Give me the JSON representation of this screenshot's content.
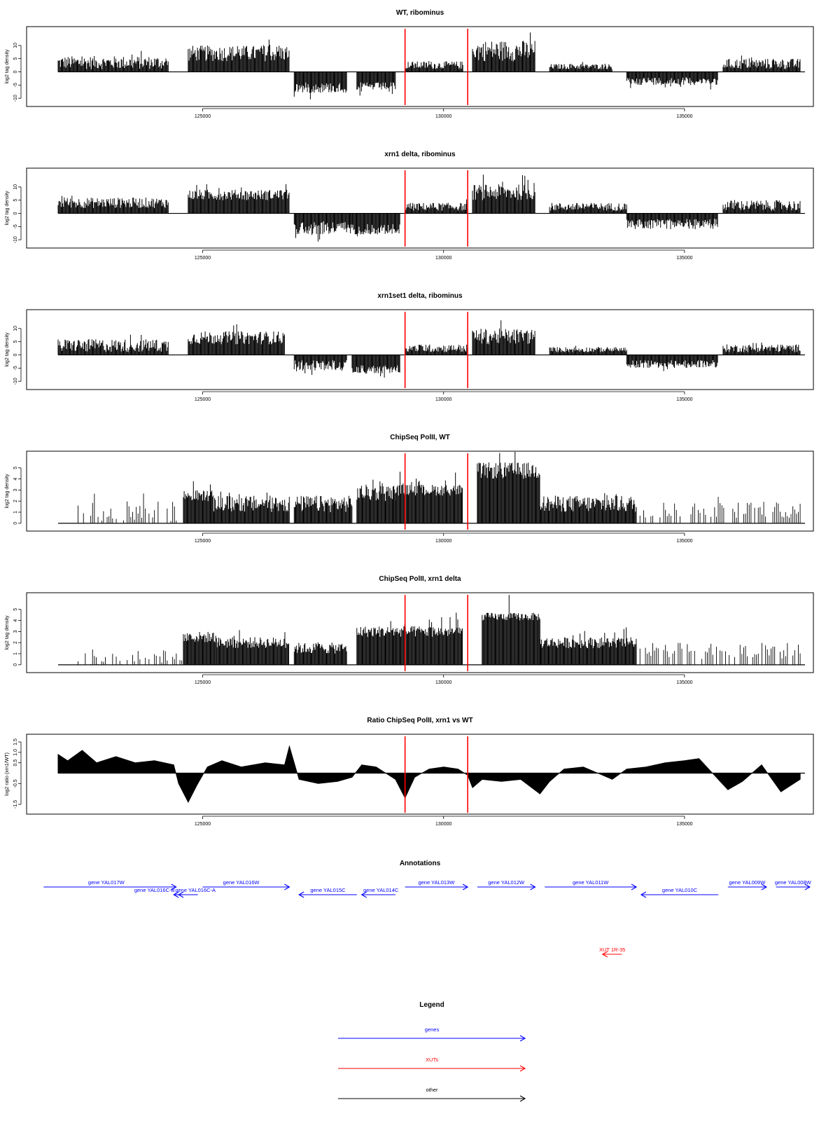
{
  "chart_data": [
    {
      "type": "bar",
      "title": "WT, ribominus",
      "ylabel": "log2 tag density",
      "ylim": [
        -11,
        15
      ],
      "yticks": [
        "-10",
        "-5",
        "0",
        "5",
        "10"
      ],
      "xlim": [
        122000,
        137500
      ],
      "xticks": [
        "125000",
        "130000",
        "135000"
      ],
      "markers": [
        129200,
        130500
      ],
      "segments": [
        {
          "x": [
            122000,
            124300
          ],
          "y": [
            1,
            6
          ],
          "dir": "pos"
        },
        {
          "x": [
            124700,
            126800
          ],
          "y": [
            4,
            10
          ],
          "dir": "pos"
        },
        {
          "x": [
            126900,
            128000
          ],
          "y": [
            -4,
            -8
          ],
          "dir": "neg"
        },
        {
          "x": [
            128200,
            129000
          ],
          "y": [
            -4,
            -7
          ],
          "dir": "neg"
        },
        {
          "x": [
            129200,
            130400
          ],
          "y": [
            1,
            4
          ],
          "dir": "pos"
        },
        {
          "x": [
            130600,
            131900
          ],
          "y": [
            4,
            12
          ],
          "dir": "pos"
        },
        {
          "x": [
            132200,
            133500
          ],
          "y": [
            1,
            3
          ],
          "dir": "pos"
        },
        {
          "x": [
            133800,
            135700
          ],
          "y": [
            -2,
            -5
          ],
          "dir": "neg"
        },
        {
          "x": [
            135800,
            137400
          ],
          "y": [
            1,
            5
          ],
          "dir": "pos"
        }
      ]
    },
    {
      "type": "bar",
      "title": "xrn1 delta, ribominus",
      "ylabel": "log2 tag density",
      "ylim": [
        -11,
        15
      ],
      "yticks": [
        "-10",
        "-5",
        "0",
        "5",
        "10"
      ],
      "xlim": [
        122000,
        137500
      ],
      "xticks": [
        "125000",
        "130000",
        "135000"
      ],
      "markers": [
        129200,
        130500
      ],
      "segments": [
        {
          "x": [
            122000,
            124300
          ],
          "y": [
            2,
            6
          ],
          "dir": "pos"
        },
        {
          "x": [
            124700,
            126800
          ],
          "y": [
            5,
            9
          ],
          "dir": "pos"
        },
        {
          "x": [
            126900,
            128100
          ],
          "y": [
            -3,
            -8
          ],
          "dir": "neg"
        },
        {
          "x": [
            128100,
            129100
          ],
          "y": [
            -4,
            -8
          ],
          "dir": "neg"
        },
        {
          "x": [
            129200,
            130500
          ],
          "y": [
            1,
            4
          ],
          "dir": "pos"
        },
        {
          "x": [
            130600,
            131900
          ],
          "y": [
            5,
            11
          ],
          "dir": "pos"
        },
        {
          "x": [
            132200,
            133800
          ],
          "y": [
            1,
            4
          ],
          "dir": "pos"
        },
        {
          "x": [
            133800,
            135700
          ],
          "y": [
            -2,
            -6
          ],
          "dir": "neg"
        },
        {
          "x": [
            135800,
            137400
          ],
          "y": [
            1,
            5
          ],
          "dir": "pos"
        }
      ]
    },
    {
      "type": "bar",
      "title": "xrn1set1 delta, ribominus",
      "ylabel": "log2 tag density",
      "ylim": [
        -11,
        15
      ],
      "yticks": [
        "-10",
        "-5",
        "0",
        "5",
        "10"
      ],
      "xlim": [
        122000,
        137500
      ],
      "xticks": [
        "125000",
        "130000",
        "135000"
      ],
      "markers": [
        129200,
        130500
      ],
      "segments": [
        {
          "x": [
            122000,
            124300
          ],
          "y": [
            1,
            6
          ],
          "dir": "pos"
        },
        {
          "x": [
            124700,
            126700
          ],
          "y": [
            4,
            9
          ],
          "dir": "pos"
        },
        {
          "x": [
            126900,
            128000
          ],
          "y": [
            -2,
            -6
          ],
          "dir": "neg"
        },
        {
          "x": [
            128100,
            129100
          ],
          "y": [
            -4,
            -7
          ],
          "dir": "neg"
        },
        {
          "x": [
            129200,
            130500
          ],
          "y": [
            1,
            4
          ],
          "dir": "pos"
        },
        {
          "x": [
            130600,
            131900
          ],
          "y": [
            4,
            10
          ],
          "dir": "pos"
        },
        {
          "x": [
            132200,
            133800
          ],
          "y": [
            1,
            3
          ],
          "dir": "pos"
        },
        {
          "x": [
            133800,
            135700
          ],
          "y": [
            -2,
            -5
          ],
          "dir": "neg"
        },
        {
          "x": [
            135800,
            137400
          ],
          "y": [
            1,
            4
          ],
          "dir": "pos"
        }
      ]
    },
    {
      "type": "bar",
      "title": "ChipSeq PolII, WT",
      "ylabel": "log2 tag density",
      "ylim": [
        -0.2,
        6
      ],
      "yticks": [
        "0",
        "1",
        "2",
        "3",
        "4",
        "5"
      ],
      "xlim": [
        122000,
        137500
      ],
      "xticks": [
        "125000",
        "130000",
        "135000"
      ],
      "markers": [
        129200,
        130500
      ],
      "segments": [
        {
          "x": [
            122300,
            124600
          ],
          "y": [
            0,
            2
          ],
          "dir": "pos",
          "style": "sparse"
        },
        {
          "x": [
            124600,
            125200
          ],
          "y": [
            2,
            3
          ],
          "dir": "pos"
        },
        {
          "x": [
            125200,
            126800
          ],
          "y": [
            1,
            2.5
          ],
          "dir": "pos"
        },
        {
          "x": [
            126900,
            128100
          ],
          "y": [
            1,
            2.5
          ],
          "dir": "pos"
        },
        {
          "x": [
            128200,
            129000
          ],
          "y": [
            2,
            3.5
          ],
          "dir": "pos"
        },
        {
          "x": [
            129000,
            130400
          ],
          "y": [
            2.5,
            3.5
          ],
          "dir": "pos"
        },
        {
          "x": [
            130700,
            132000
          ],
          "y": [
            4,
            5.5
          ],
          "dir": "pos"
        },
        {
          "x": [
            132000,
            134000
          ],
          "y": [
            1,
            2.5
          ],
          "dir": "pos"
        },
        {
          "x": [
            134000,
            137400
          ],
          "y": [
            0.5,
            2
          ],
          "dir": "pos",
          "style": "sparse"
        }
      ]
    },
    {
      "type": "bar",
      "title": "ChipSeq PolII, xrn1 delta",
      "ylabel": "log2 tag density",
      "ylim": [
        -0.2,
        6
      ],
      "yticks": [
        "0",
        "1",
        "2",
        "3",
        "4",
        "5"
      ],
      "xlim": [
        122000,
        137500
      ],
      "xticks": [
        "125000",
        "130000",
        "135000"
      ],
      "markers": [
        129200,
        130500
      ],
      "segments": [
        {
          "x": [
            122300,
            124600
          ],
          "y": [
            0,
            1.5
          ],
          "dir": "pos",
          "style": "sparse"
        },
        {
          "x": [
            124600,
            125300
          ],
          "y": [
            2,
            3
          ],
          "dir": "pos"
        },
        {
          "x": [
            125300,
            126800
          ],
          "y": [
            1.5,
            2.5
          ],
          "dir": "pos"
        },
        {
          "x": [
            126900,
            128000
          ],
          "y": [
            1,
            2
          ],
          "dir": "pos"
        },
        {
          "x": [
            128200,
            129000
          ],
          "y": [
            2.5,
            3.5
          ],
          "dir": "pos"
        },
        {
          "x": [
            129000,
            130400
          ],
          "y": [
            2.5,
            3.5
          ],
          "dir": "pos"
        },
        {
          "x": [
            130800,
            132000
          ],
          "y": [
            4,
            4.7
          ],
          "dir": "pos"
        },
        {
          "x": [
            132000,
            134000
          ],
          "y": [
            1.5,
            2.5
          ],
          "dir": "pos"
        },
        {
          "x": [
            134000,
            137400
          ],
          "y": [
            0.5,
            2
          ],
          "dir": "pos",
          "style": "sparse"
        }
      ]
    },
    {
      "type": "area",
      "title": "Ratio ChipSeq PolII, xrn1 vs WT",
      "ylabel": "log2 ratio (xrn1/WT)",
      "ylim": [
        -1.7,
        1.6
      ],
      "yticks": [
        "-1.5",
        "-0.5",
        "0.5",
        "1.0",
        "1.5"
      ],
      "ytick_values": [
        -1.5,
        -0.5,
        0.5,
        1.0,
        1.5
      ],
      "xlim": [
        122000,
        137500
      ],
      "xticks": [
        "125000",
        "130000",
        "135000"
      ],
      "markers": [
        129200,
        130500
      ],
      "x": [
        122000,
        122200,
        122500,
        122800,
        123200,
        123600,
        124000,
        124400,
        124500,
        124700,
        124900,
        125100,
        125400,
        125800,
        126300,
        126700,
        126800,
        127000,
        127400,
        127800,
        128100,
        128300,
        128600,
        129000,
        129200,
        129400,
        129700,
        130000,
        130300,
        130500,
        130600,
        130800,
        131200,
        131600,
        132000,
        132200,
        132500,
        132900,
        133200,
        133500,
        133800,
        134200,
        134600,
        135000,
        135300,
        135700,
        135900,
        136200,
        136600,
        137000,
        137400
      ],
      "y": [
        0.9,
        0.6,
        1.1,
        0.5,
        0.8,
        0.5,
        0.6,
        0.4,
        -0.5,
        -1.4,
        -0.5,
        0.3,
        0.6,
        0.3,
        0.5,
        0.4,
        1.3,
        -0.3,
        -0.5,
        -0.4,
        -0.2,
        0.4,
        0.3,
        -0.3,
        -1.2,
        -0.2,
        0.2,
        0.3,
        0.2,
        -0.1,
        -0.7,
        -0.3,
        -0.4,
        -0.3,
        -1.0,
        -0.4,
        0.2,
        0.3,
        0.0,
        -0.3,
        0.2,
        0.3,
        0.5,
        0.6,
        0.7,
        -0.3,
        -0.8,
        -0.4,
        0.4,
        -0.9,
        -0.3
      ]
    }
  ],
  "annotations": {
    "title": "Annotations",
    "xlim": [
      122000,
      137500
    ],
    "genes": [
      {
        "label": "gene YAL017W",
        "x1": 121700,
        "x2": 124450,
        "dir": "right",
        "row": 0,
        "lx": 123000
      },
      {
        "label": "gene YAL016W",
        "x1": 125000,
        "x2": 126800,
        "dir": "right",
        "row": 0,
        "lx": 125800
      },
      {
        "label": "gene YAL013W",
        "x1": 129200,
        "x2": 130500,
        "dir": "right",
        "row": 0,
        "lx": 129850
      },
      {
        "label": "gene YAL012W",
        "x1": 130700,
        "x2": 131900,
        "dir": "right",
        "row": 0,
        "lx": 131300
      },
      {
        "label": "gene YAL011W",
        "x1": 132100,
        "x2": 134000,
        "dir": "right",
        "row": 0,
        "lx": 133050
      },
      {
        "label": "gene YAL009W",
        "x1": 135900,
        "x2": 136700,
        "dir": "right",
        "row": 0,
        "lx": 136300
      },
      {
        "label": "gene YAL008W",
        "x1": 136900,
        "x2": 137600,
        "dir": "right",
        "row": 0,
        "lx": 137250
      },
      {
        "label": "gene YAL016C-B",
        "x1": 124400,
        "x2": 124600,
        "dir": "left",
        "row": 1,
        "lx": 124000
      },
      {
        "label": "gene YAL016C-A",
        "x1": 124500,
        "x2": 124900,
        "dir": "left",
        "row": 1,
        "lx": 124850
      },
      {
        "label": "gene YAL015C",
        "x1": 127000,
        "x2": 128200,
        "dir": "left",
        "row": 1,
        "lx": 127600
      },
      {
        "label": "gene YAL014C",
        "x1": 128300,
        "x2": 129000,
        "dir": "left",
        "row": 1,
        "lx": 128700
      },
      {
        "label": "gene YAL010C",
        "x1": 134100,
        "x2": 135700,
        "dir": "left",
        "row": 1,
        "lx": 134900
      }
    ],
    "xuts": [
      {
        "label": "XUT 1R-35",
        "x1": 133300,
        "x2": 133700,
        "dir": "left",
        "lx": 133500
      }
    ]
  },
  "legend": {
    "title": "Legend",
    "items": [
      {
        "label": "genes",
        "color": "#0000ff"
      },
      {
        "label": "XUTs",
        "color": "#ff0000"
      },
      {
        "label": "other",
        "color": "#000000"
      }
    ]
  },
  "colors": {
    "gene": "#0000ff",
    "xut": "#ff0000",
    "marker": "#ff0000",
    "data": "#000000"
  }
}
